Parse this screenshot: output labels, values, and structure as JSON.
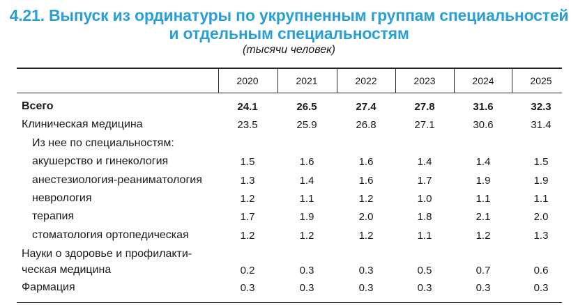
{
  "title_line1": "4.21. Выпуск из ординатуры по укрупненным группам специальностей",
  "title_line2": "и отдельным специальностям",
  "units": "(тысячи человек)",
  "years": [
    "2020",
    "2021",
    "2022",
    "2023",
    "2024",
    "2025"
  ],
  "rows": [
    {
      "label": "Всего",
      "values": [
        "24.1",
        "26.5",
        "27.4",
        "27.8",
        "31.6",
        "32.3"
      ]
    },
    {
      "label": "Клиническая медицина",
      "values": [
        "23.5",
        "25.9",
        "26.8",
        "27.1",
        "30.6",
        "31.4"
      ]
    },
    {
      "label": "Из нее по специальностям:",
      "values": []
    },
    {
      "label": "акушерство и гинекология",
      "values": [
        "1.5",
        "1.6",
        "1.6",
        "1.4",
        "1.4",
        "1.5"
      ]
    },
    {
      "label": "анестезиология-реаниматология",
      "values": [
        "1.3",
        "1.4",
        "1.6",
        "1.7",
        "1.9",
        "1.9"
      ]
    },
    {
      "label": "неврология",
      "values": [
        "1.2",
        "1.1",
        "1.2",
        "1.0",
        "1.1",
        "1.1"
      ]
    },
    {
      "label": "терапия",
      "values": [
        "1.7",
        "1.9",
        "2.0",
        "1.8",
        "2.1",
        "2.0"
      ]
    },
    {
      "label": "стоматология ортопедическая",
      "values": [
        "1.2",
        "1.2",
        "1.2",
        "1.1",
        "1.2",
        "1.3"
      ]
    },
    {
      "label": "Науки о здоровье и профилакти-",
      "label2": "ческая медицина",
      "values": [
        "0.2",
        "0.3",
        "0.3",
        "0.5",
        "0.7",
        "0.6"
      ]
    },
    {
      "label": "Фармация",
      "values": [
        "0.3",
        "0.3",
        "0.3",
        "0.3",
        "0.3",
        "0.3"
      ]
    }
  ]
}
